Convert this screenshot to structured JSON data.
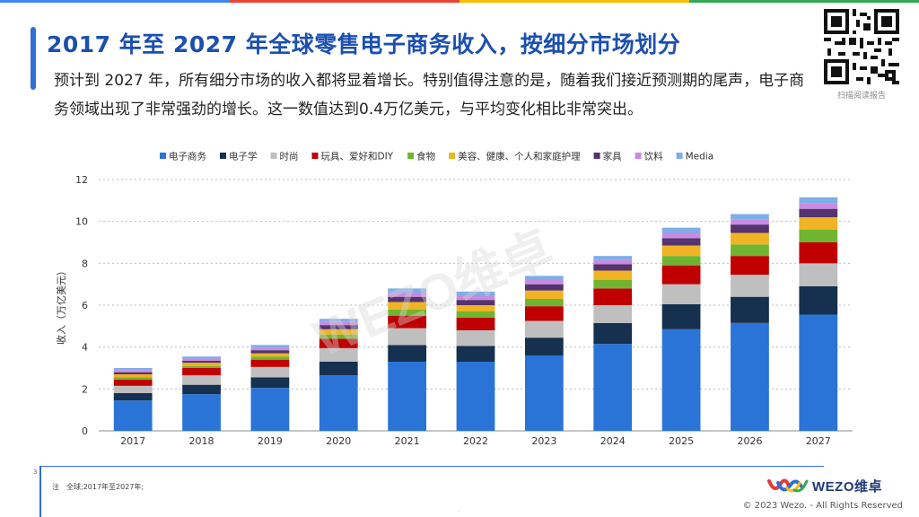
{
  "header": {
    "title": "2017 年至 2027 年全球零售电子商务收入，按细分市场划分",
    "subtitle": "预计到 2027 年，所有细分市场的收入都将显着增长。特别值得注意的是，随着我们接近预测期的尾声，电子商务领域出现了非常强劲的增长。这一数值达到0.4万亿美元，与平均变化相比非常突出。"
  },
  "qr": {
    "caption": "扫描阅读报告",
    "icon": "qr-code-icon"
  },
  "footer": {
    "page_number": "3",
    "note": "注　全球;2017年至2027年;",
    "dot": "·",
    "copyright": "© 2023 Wezo. - All Rights Reserved",
    "logo_text": "WEZO维卓"
  },
  "watermark": "WEZO维卓",
  "colors": {
    "title": "#1b4fb0",
    "accent": "#2f6fd6",
    "topbar": [
      "#4285f4",
      "#ea4335",
      "#fbbc05",
      "#34a853"
    ]
  },
  "chart_data": {
    "type": "bar",
    "stacked": true,
    "categories": [
      "2017",
      "2018",
      "2019",
      "2020",
      "2021",
      "2022",
      "2023",
      "2024",
      "2025",
      "2026",
      "2027"
    ],
    "ylabel": "收入（万亿美元）",
    "xlabel": "",
    "ylim": [
      0,
      12
    ],
    "yticks": [
      0,
      2,
      4,
      6,
      8,
      10,
      12
    ],
    "grid": true,
    "legend_position": "top",
    "series": [
      {
        "name": "电子商务",
        "color": "#2a74d8",
        "values": [
          1.45,
          1.75,
          2.05,
          2.65,
          3.3,
          3.3,
          3.6,
          4.15,
          4.85,
          5.15,
          5.55
        ]
      },
      {
        "name": "电子学",
        "color": "#16304f",
        "values": [
          0.35,
          0.45,
          0.5,
          0.65,
          0.8,
          0.75,
          0.85,
          1.0,
          1.2,
          1.25,
          1.35
        ]
      },
      {
        "name": "时尚",
        "color": "#bfbfbf",
        "values": [
          0.35,
          0.45,
          0.5,
          0.65,
          0.8,
          0.75,
          0.8,
          0.85,
          0.95,
          1.05,
          1.1
        ]
      },
      {
        "name": "玩具、爱好和DIY",
        "color": "#c00000",
        "values": [
          0.3,
          0.35,
          0.35,
          0.45,
          0.6,
          0.6,
          0.7,
          0.8,
          0.9,
          0.9,
          1.0
        ]
      },
      {
        "name": "食物",
        "color": "#70b530",
        "values": [
          0.1,
          0.1,
          0.15,
          0.2,
          0.3,
          0.3,
          0.35,
          0.4,
          0.45,
          0.55,
          0.6
        ]
      },
      {
        "name": "美容、健康、个人和家庭护理",
        "color": "#f0b323",
        "values": [
          0.15,
          0.15,
          0.15,
          0.25,
          0.35,
          0.3,
          0.4,
          0.45,
          0.5,
          0.55,
          0.6
        ]
      },
      {
        "name": "家具",
        "color": "#55336e",
        "values": [
          0.1,
          0.1,
          0.15,
          0.2,
          0.25,
          0.25,
          0.3,
          0.3,
          0.35,
          0.4,
          0.4
        ]
      },
      {
        "name": "饮料",
        "color": "#c98be0",
        "values": [
          0.1,
          0.1,
          0.1,
          0.15,
          0.2,
          0.2,
          0.2,
          0.2,
          0.25,
          0.25,
          0.25
        ]
      },
      {
        "name": "Media",
        "color": "#7faee8",
        "values": [
          0.1,
          0.1,
          0.15,
          0.15,
          0.2,
          0.2,
          0.2,
          0.2,
          0.25,
          0.25,
          0.3
        ]
      }
    ]
  }
}
